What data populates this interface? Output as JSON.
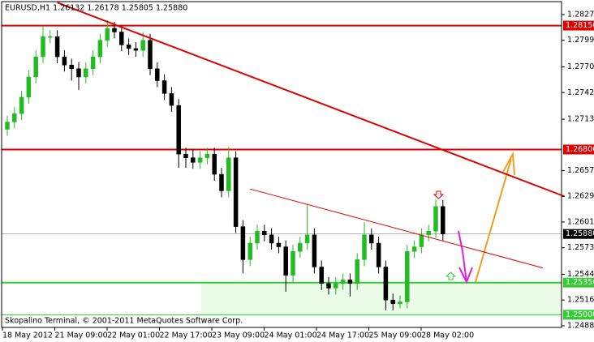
{
  "chart_data": {
    "type": "candlestick",
    "title": "EURUSD,H1  1.26132 1.26178 1.25805 1.25880",
    "footer": "Skopalino Terminal, © 2001-2011 MetaQuotes Software Corp.",
    "x_labels": [
      "18 May 2012",
      "21 May 09:00",
      "22 May 01:00",
      "22 May 17:00",
      "23 May 09:00",
      "24 May 01:00",
      "24 May 17:00",
      "25 May 09:00",
      "28 May 02:00"
    ],
    "open": [
      1.2702,
      1.271,
      1.2719,
      1.2737,
      1.2759,
      1.2781,
      1.2803,
      1.2803,
      1.2781,
      1.2772,
      1.2768,
      1.2759,
      1.2768,
      1.2781,
      1.2799,
      1.2812,
      1.2808,
      1.2794,
      1.279,
      1.2788,
      1.2799,
      1.2768,
      1.2755,
      1.2741,
      1.2728,
      1.2675,
      1.2671,
      1.2666,
      1.2671,
      1.2675,
      1.2653,
      1.2635,
      1.2671,
      1.2596,
      1.256,
      1.2578,
      1.2591,
      1.2587,
      1.2578,
      1.2574,
      1.2543,
      1.2569,
      1.2578,
      1.2587,
      1.2552,
      1.2534,
      1.2529,
      1.2534,
      1.2538,
      1.2534,
      1.256,
      1.2587,
      1.2578,
      1.2552,
      1.2516,
      1.2512,
      1.2514,
      1.2569,
      1.2574,
      1.2587,
      1.2591,
      1.2618
    ],
    "high": [
      1.2717,
      1.2726,
      1.2744,
      1.2766,
      1.2788,
      1.2815,
      1.281,
      1.281,
      1.2788,
      1.2779,
      1.2775,
      1.2775,
      1.2788,
      1.2806,
      1.2821,
      1.2819,
      1.2815,
      1.2801,
      1.2797,
      1.2808,
      1.2806,
      1.2775,
      1.2762,
      1.2748,
      1.2735,
      1.2682,
      1.268,
      1.2678,
      1.2682,
      1.2682,
      1.266,
      1.2683,
      1.2678,
      1.2603,
      1.2585,
      1.2598,
      1.2598,
      1.2594,
      1.2585,
      1.2581,
      1.2576,
      1.2585,
      1.262,
      1.2594,
      1.2559,
      1.2541,
      1.2541,
      1.2545,
      1.2545,
      1.2567,
      1.2601,
      1.2594,
      1.2585,
      1.2559,
      1.2523,
      1.2521,
      1.2576,
      1.2581,
      1.2594,
      1.2598,
      1.2625,
      1.2625
    ],
    "low": [
      1.2695,
      1.2703,
      1.2712,
      1.273,
      1.2752,
      1.2774,
      1.2796,
      1.2774,
      1.2765,
      1.2755,
      1.2745,
      1.2752,
      1.2761,
      1.2774,
      1.2792,
      1.2801,
      1.2787,
      1.2783,
      1.2781,
      1.2781,
      1.2761,
      1.2748,
      1.2734,
      1.2721,
      1.266,
      1.266,
      1.2659,
      1.2659,
      1.2664,
      1.2646,
      1.2628,
      1.2628,
      1.2589,
      1.2545,
      1.2553,
      1.2571,
      1.258,
      1.2571,
      1.2567,
      1.2525,
      1.2536,
      1.2562,
      1.2571,
      1.2545,
      1.2527,
      1.2522,
      1.2522,
      1.2527,
      1.252,
      1.2527,
      1.2553,
      1.2571,
      1.2545,
      1.2505,
      1.2505,
      1.2507,
      1.2507,
      1.2562,
      1.2567,
      1.258,
      1.2584,
      1.2581
    ],
    "close": [
      1.271,
      1.2719,
      1.2737,
      1.2759,
      1.2781,
      1.2803,
      1.2803,
      1.2781,
      1.2772,
      1.2768,
      1.2759,
      1.2768,
      1.2781,
      1.2799,
      1.2812,
      1.2808,
      1.2794,
      1.279,
      1.2788,
      1.2799,
      1.2768,
      1.2755,
      1.2741,
      1.2728,
      1.2675,
      1.2671,
      1.2666,
      1.2671,
      1.2675,
      1.2653,
      1.2635,
      1.2671,
      1.2596,
      1.256,
      1.2578,
      1.2591,
      1.2587,
      1.2578,
      1.2574,
      1.2543,
      1.2569,
      1.2578,
      1.2587,
      1.2552,
      1.2534,
      1.2529,
      1.2534,
      1.2538,
      1.2534,
      1.256,
      1.2587,
      1.2578,
      1.2552,
      1.2516,
      1.2512,
      1.2514,
      1.2569,
      1.2574,
      1.2587,
      1.2591,
      1.2618,
      1.2588
    ],
    "bull_color": "#22bb22",
    "bear_color": "#000000",
    "ylim": [
      1.24862,
      1.28411
    ],
    "yticks": [
      {
        "value": 1.2827,
        "label": "1.28270"
      },
      {
        "value": 1.2799,
        "label": "1.27990"
      },
      {
        "value": 1.277,
        "label": "1.27700"
      },
      {
        "value": 1.2742,
        "label": "1.27420"
      },
      {
        "value": 1.2713,
        "label": "1.27130"
      },
      {
        "value": 1.2657,
        "label": "1.26570"
      },
      {
        "value": 1.2629,
        "label": "1.26290"
      },
      {
        "value": 1.2601,
        "label": "1.26010"
      },
      {
        "value": 1.2573,
        "label": "1.25730"
      },
      {
        "value": 1.2544,
        "label": "1.25440"
      },
      {
        "value": 1.2516,
        "label": "1.25160"
      },
      {
        "value": 1.2488,
        "label": "1.24880"
      }
    ],
    "zone": {
      "from": 1.25,
      "to": 1.2535,
      "color": "#eafbe8"
    },
    "levels": [
      {
        "value": 1.2815,
        "label": "1.28150",
        "color": "#e00000"
      },
      {
        "value": 1.268,
        "label": "1.26800",
        "color": "#e00000"
      },
      {
        "value": 1.2588,
        "label": "1.25880",
        "color": "#000000"
      },
      {
        "value": 1.2535,
        "label": "1.25350",
        "color": "#33cc33"
      },
      {
        "value": 1.25,
        "label": "1.25000",
        "color": "#33cc33"
      }
    ],
    "trendlines": [
      {
        "color": "#e00000",
        "start": {
          "index": 7,
          "price": 1.284
        },
        "end": {
          "index": 78,
          "price": 1.2629
        }
      },
      {
        "color": "#e00000",
        "start": {
          "index": 34,
          "price": 1.2637
        },
        "end": {
          "index": 75,
          "price": 1.2551
        }
      }
    ]
  }
}
